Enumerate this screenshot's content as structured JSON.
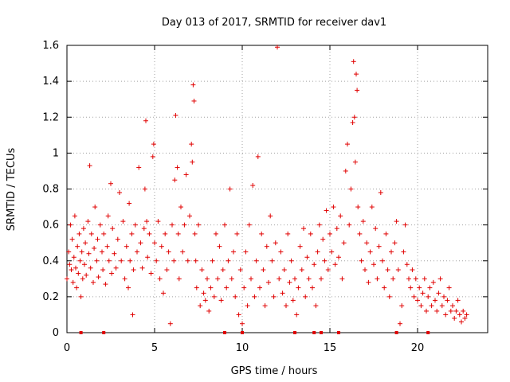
{
  "chart_data": {
    "type": "scatter",
    "title": "Day 013 of 2017, SRMTID for receiver dav1",
    "xlabel": "GPS time / hours",
    "ylabel": "SRMTID / TECUs",
    "xlim": [
      0,
      24
    ],
    "ylim": [
      0,
      1.6
    ],
    "xticks": [
      0,
      5,
      10,
      15,
      20
    ],
    "xtick_labels": [
      "0",
      "5",
      "10",
      "15",
      "20"
    ],
    "yticks": [
      0,
      0.2,
      0.4,
      0.6,
      0.8,
      1.0,
      1.2,
      1.4,
      1.6
    ],
    "ytick_labels": [
      "0",
      "0.2",
      "0.4",
      "0.6",
      "0.8",
      "1",
      "1.2",
      "1.4",
      "1.6"
    ],
    "grid": true,
    "legend": "none",
    "marker": "+",
    "color": "#e00000",
    "series": [
      {
        "name": "SRMTID",
        "points": [
          [
            0.0,
            0.3
          ],
          [
            0.1,
            0.45
          ],
          [
            0.15,
            0.38
          ],
          [
            0.2,
            0.6
          ],
          [
            0.25,
            0.35
          ],
          [
            0.3,
            0.52
          ],
          [
            0.35,
            0.28
          ],
          [
            0.4,
            0.42
          ],
          [
            0.45,
            0.65
          ],
          [
            0.5,
            0.36
          ],
          [
            0.55,
            0.25
          ],
          [
            0.6,
            0.48
          ],
          [
            0.65,
            0.33
          ],
          [
            0.7,
            0.55
          ],
          [
            0.75,
            0.4
          ],
          [
            0.8,
            0.2
          ],
          [
            0.85,
            0.45
          ],
          [
            0.9,
            0.3
          ],
          [
            0.95,
            0.58
          ],
          [
            1.0,
            0.38
          ],
          [
            1.05,
            0.5
          ],
          [
            1.1,
            0.32
          ],
          [
            1.2,
            0.62
          ],
          [
            1.25,
            0.44
          ],
          [
            1.3,
            0.93
          ],
          [
            1.35,
            0.36
          ],
          [
            1.4,
            0.55
          ],
          [
            1.5,
            0.28
          ],
          [
            1.55,
            0.47
          ],
          [
            1.6,
            0.7
          ],
          [
            1.7,
            0.4
          ],
          [
            1.75,
            0.52
          ],
          [
            1.8,
            0.31
          ],
          [
            1.9,
            0.6
          ],
          [
            2.0,
            0.45
          ],
          [
            2.05,
            0.35
          ],
          [
            2.1,
            0.55
          ],
          [
            2.2,
            0.27
          ],
          [
            2.3,
            0.48
          ],
          [
            2.35,
            0.65
          ],
          [
            2.4,
            0.4
          ],
          [
            2.5,
            0.83
          ],
          [
            2.55,
            0.33
          ],
          [
            2.6,
            0.58
          ],
          [
            2.7,
            0.44
          ],
          [
            2.8,
            0.36
          ],
          [
            2.9,
            0.52
          ],
          [
            3.0,
            0.78
          ],
          [
            3.1,
            0.4
          ],
          [
            3.2,
            0.62
          ],
          [
            3.3,
            0.3
          ],
          [
            3.4,
            0.48
          ],
          [
            3.5,
            0.25
          ],
          [
            3.55,
            0.72
          ],
          [
            3.6,
            0.4
          ],
          [
            3.7,
            0.55
          ],
          [
            3.75,
            0.1
          ],
          [
            3.8,
            0.35
          ],
          [
            3.9,
            0.6
          ],
          [
            4.0,
            0.45
          ],
          [
            4.1,
            0.92
          ],
          [
            4.2,
            0.5
          ],
          [
            4.3,
            0.36
          ],
          [
            4.4,
            0.58
          ],
          [
            4.45,
            0.8
          ],
          [
            4.5,
            1.18
          ],
          [
            4.55,
            0.62
          ],
          [
            4.6,
            0.42
          ],
          [
            4.7,
            0.55
          ],
          [
            4.8,
            0.33
          ],
          [
            4.9,
            0.98
          ],
          [
            4.95,
            1.05
          ],
          [
            5.0,
            0.5
          ],
          [
            5.1,
            0.4
          ],
          [
            5.2,
            0.62
          ],
          [
            5.3,
            0.3
          ],
          [
            5.4,
            0.48
          ],
          [
            5.5,
            0.22
          ],
          [
            5.6,
            0.55
          ],
          [
            5.7,
            0.35
          ],
          [
            5.8,
            0.45
          ],
          [
            5.9,
            0.05
          ],
          [
            6.0,
            0.6
          ],
          [
            6.1,
            0.4
          ],
          [
            6.15,
            0.85
          ],
          [
            6.2,
            1.21
          ],
          [
            6.3,
            0.92
          ],
          [
            6.35,
            0.55
          ],
          [
            6.4,
            0.3
          ],
          [
            6.5,
            0.7
          ],
          [
            6.6,
            0.45
          ],
          [
            6.7,
            0.6
          ],
          [
            6.8,
            0.88
          ],
          [
            6.9,
            0.4
          ],
          [
            7.0,
            0.65
          ],
          [
            7.1,
            1.05
          ],
          [
            7.15,
            0.95
          ],
          [
            7.2,
            1.38
          ],
          [
            7.25,
            1.29
          ],
          [
            7.3,
            0.55
          ],
          [
            7.35,
            0.4
          ],
          [
            7.4,
            0.25
          ],
          [
            7.5,
            0.6
          ],
          [
            7.6,
            0.15
          ],
          [
            7.7,
            0.35
          ],
          [
            7.8,
            0.22
          ],
          [
            7.9,
            0.18
          ],
          [
            8.0,
            0.3
          ],
          [
            8.1,
            0.12
          ],
          [
            8.2,
            0.25
          ],
          [
            8.3,
            0.4
          ],
          [
            8.4,
            0.2
          ],
          [
            8.5,
            0.55
          ],
          [
            8.6,
            0.3
          ],
          [
            8.7,
            0.48
          ],
          [
            8.8,
            0.18
          ],
          [
            8.9,
            0.35
          ],
          [
            9.0,
            0.6
          ],
          [
            9.1,
            0.25
          ],
          [
            9.2,
            0.4
          ],
          [
            9.3,
            0.8
          ],
          [
            9.4,
            0.3
          ],
          [
            9.5,
            0.45
          ],
          [
            9.6,
            0.2
          ],
          [
            9.7,
            0.55
          ],
          [
            9.8,
            0.1
          ],
          [
            9.9,
            0.35
          ],
          [
            10.0,
            0.05
          ],
          [
            10.1,
            0.25
          ],
          [
            10.2,
            0.45
          ],
          [
            10.3,
            0.15
          ],
          [
            10.4,
            0.6
          ],
          [
            10.5,
            0.3
          ],
          [
            10.6,
            0.82
          ],
          [
            10.7,
            0.2
          ],
          [
            10.8,
            0.4
          ],
          [
            10.9,
            0.98
          ],
          [
            11.0,
            0.25
          ],
          [
            11.1,
            0.55
          ],
          [
            11.2,
            0.35
          ],
          [
            11.3,
            0.15
          ],
          [
            11.4,
            0.48
          ],
          [
            11.5,
            0.28
          ],
          [
            11.6,
            0.65
          ],
          [
            11.7,
            0.4
          ],
          [
            11.8,
            0.2
          ],
          [
            11.9,
            0.5
          ],
          [
            12.0,
            1.59
          ],
          [
            12.1,
            0.3
          ],
          [
            12.2,
            0.45
          ],
          [
            12.3,
            0.22
          ],
          [
            12.4,
            0.35
          ],
          [
            12.5,
            0.15
          ],
          [
            12.6,
            0.55
          ],
          [
            12.7,
            0.28
          ],
          [
            12.8,
            0.4
          ],
          [
            12.9,
            0.18
          ],
          [
            13.0,
            0.3
          ],
          [
            13.1,
            0.1
          ],
          [
            13.2,
            0.25
          ],
          [
            13.3,
            0.48
          ],
          [
            13.4,
            0.35
          ],
          [
            13.5,
            0.58
          ],
          [
            13.6,
            0.2
          ],
          [
            13.7,
            0.42
          ],
          [
            13.8,
            0.3
          ],
          [
            13.9,
            0.55
          ],
          [
            14.0,
            0.25
          ],
          [
            14.1,
            0.38
          ],
          [
            14.2,
            0.15
          ],
          [
            14.3,
            0.45
          ],
          [
            14.4,
            0.6
          ],
          [
            14.5,
            0.3
          ],
          [
            14.6,
            0.52
          ],
          [
            14.7,
            0.4
          ],
          [
            14.8,
            0.68
          ],
          [
            14.9,
            0.35
          ],
          [
            15.0,
            0.55
          ],
          [
            15.1,
            0.45
          ],
          [
            15.2,
            0.7
          ],
          [
            15.3,
            0.38
          ],
          [
            15.4,
            0.58
          ],
          [
            15.5,
            0.42
          ],
          [
            15.6,
            0.65
          ],
          [
            15.7,
            0.3
          ],
          [
            15.8,
            0.5
          ],
          [
            15.9,
            0.9
          ],
          [
            16.0,
            1.05
          ],
          [
            16.1,
            0.6
          ],
          [
            16.2,
            0.8
          ],
          [
            16.3,
            1.17
          ],
          [
            16.35,
            1.51
          ],
          [
            16.4,
            1.2
          ],
          [
            16.45,
            0.95
          ],
          [
            16.5,
            1.44
          ],
          [
            16.55,
            1.35
          ],
          [
            16.6,
            0.7
          ],
          [
            16.7,
            0.55
          ],
          [
            16.8,
            0.4
          ],
          [
            16.9,
            0.62
          ],
          [
            17.0,
            0.35
          ],
          [
            17.1,
            0.5
          ],
          [
            17.2,
            0.28
          ],
          [
            17.3,
            0.45
          ],
          [
            17.4,
            0.7
          ],
          [
            17.5,
            0.38
          ],
          [
            17.6,
            0.58
          ],
          [
            17.7,
            0.3
          ],
          [
            17.8,
            0.48
          ],
          [
            17.9,
            0.78
          ],
          [
            18.0,
            0.4
          ],
          [
            18.1,
            0.25
          ],
          [
            18.2,
            0.55
          ],
          [
            18.3,
            0.35
          ],
          [
            18.4,
            0.2
          ],
          [
            18.5,
            0.45
          ],
          [
            18.6,
            0.3
          ],
          [
            18.7,
            0.5
          ],
          [
            18.8,
            0.62
          ],
          [
            18.9,
            0.35
          ],
          [
            19.0,
            0.05
          ],
          [
            19.1,
            0.15
          ],
          [
            19.2,
            0.45
          ],
          [
            19.3,
            0.6
          ],
          [
            19.4,
            0.38
          ],
          [
            19.5,
            0.3
          ],
          [
            19.6,
            0.25
          ],
          [
            19.7,
            0.35
          ],
          [
            19.8,
            0.2
          ],
          [
            19.9,
            0.3
          ],
          [
            20.0,
            0.18
          ],
          [
            20.1,
            0.25
          ],
          [
            20.2,
            0.15
          ],
          [
            20.3,
            0.22
          ],
          [
            20.4,
            0.3
          ],
          [
            20.5,
            0.12
          ],
          [
            20.6,
            0.2
          ],
          [
            20.7,
            0.25
          ],
          [
            20.8,
            0.15
          ],
          [
            20.9,
            0.28
          ],
          [
            21.0,
            0.18
          ],
          [
            21.1,
            0.12
          ],
          [
            21.2,
            0.22
          ],
          [
            21.3,
            0.3
          ],
          [
            21.4,
            0.15
          ],
          [
            21.5,
            0.2
          ],
          [
            21.6,
            0.1
          ],
          [
            21.7,
            0.18
          ],
          [
            21.8,
            0.25
          ],
          [
            21.9,
            0.12
          ],
          [
            22.0,
            0.15
          ],
          [
            22.1,
            0.08
          ],
          [
            22.2,
            0.12
          ],
          [
            22.3,
            0.18
          ],
          [
            22.4,
            0.1
          ],
          [
            22.5,
            0.06
          ],
          [
            22.6,
            0.12
          ],
          [
            22.7,
            0.08
          ],
          [
            22.8,
            0.1
          ]
        ]
      }
    ],
    "zero_markers_x": [
      0.8,
      2.1,
      9.0,
      10.0,
      13.0,
      14.1,
      14.5,
      15.5,
      18.8,
      20.6
    ]
  }
}
